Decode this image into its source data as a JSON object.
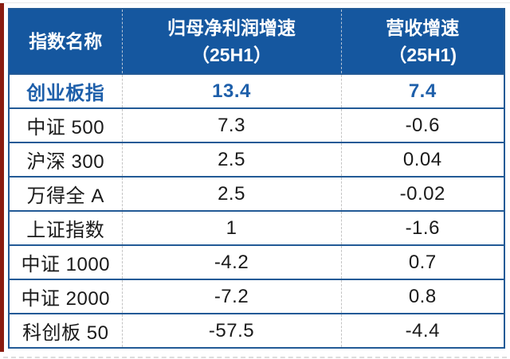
{
  "colors": {
    "header_bg": "#15579f",
    "border_blue": "#225a96",
    "highlight_blue": "#1e5faa",
    "red_strip": "#8a1c10"
  },
  "table": {
    "columns": [
      {
        "line1": "指数名称",
        "line2": ""
      },
      {
        "line1": "归母净利润增速",
        "line2": "（25H1）"
      },
      {
        "line1": "营收增速",
        "line2": "（25H1)"
      }
    ],
    "rows": [
      {
        "name": "创业板指",
        "profit": "13.4",
        "revenue": "7.4",
        "highlight": true
      },
      {
        "name": "中证 500",
        "profit": "7.3",
        "revenue": "-0.6"
      },
      {
        "name": "沪深 300",
        "profit": "2.5",
        "revenue": "0.04"
      },
      {
        "name": "万得全 A",
        "profit": "2.5",
        "revenue": "-0.02"
      },
      {
        "name": "上证指数",
        "profit": "1",
        "revenue": "-1.6"
      },
      {
        "name": "中证 1000",
        "profit": "-4.2",
        "revenue": "0.7"
      },
      {
        "name": "中证 2000",
        "profit": "-7.2",
        "revenue": "0.8"
      },
      {
        "name": "科创板 50",
        "profit": "-57.5",
        "revenue": "-4.4"
      }
    ]
  },
  "chart_data": {
    "type": "table",
    "title": "",
    "columns": [
      "指数名称",
      "归母净利润增速（25H1）",
      "营收增速（25H1)"
    ],
    "rows": [
      [
        "创业板指",
        13.4,
        7.4
      ],
      [
        "中证 500",
        7.3,
        -0.6
      ],
      [
        "沪深 300",
        2.5,
        0.04
      ],
      [
        "万得全 A",
        2.5,
        -0.02
      ],
      [
        "上证指数",
        1,
        -1.6
      ],
      [
        "中证 1000",
        -4.2,
        0.7
      ],
      [
        "中证 2000",
        -7.2,
        0.8
      ],
      [
        "科创板 50",
        -57.5,
        -4.4
      ]
    ],
    "layout_hints": {
      "header_background": "#15579f",
      "first_row_highlighted": true,
      "row_separators": "solid blue",
      "column_separators": "dashed gray"
    }
  }
}
